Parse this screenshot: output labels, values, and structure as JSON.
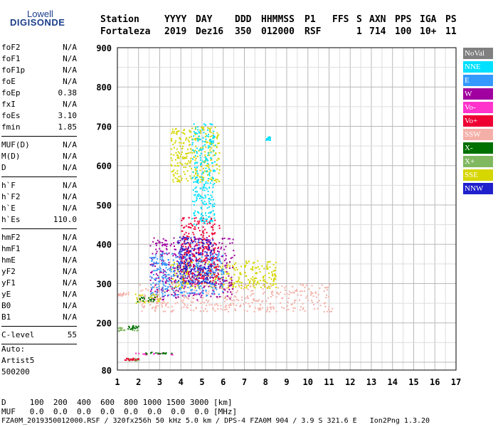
{
  "logo": {
    "line1": "Lowell",
    "line2": "DIGISONDE"
  },
  "header": {
    "labels": [
      "Station",
      "YYYY",
      "DAY",
      "DDD",
      "HHMMSS",
      "P1",
      "FFS",
      "S",
      "AXN",
      "PPS",
      "IGA",
      "PS"
    ],
    "values": [
      "Fortaleza",
      "2019",
      "Dez16",
      "350",
      "012000",
      "RSF",
      "",
      "1",
      "714",
      "100",
      "10+",
      "11"
    ]
  },
  "params": {
    "group1": [
      {
        "k": "foF2",
        "v": "N/A"
      },
      {
        "k": "foF1",
        "v": "N/A"
      },
      {
        "k": "foF1p",
        "v": "N/A"
      },
      {
        "k": "foE",
        "v": "N/A"
      },
      {
        "k": "foEp",
        "v": "0.38"
      },
      {
        "k": "fxI",
        "v": "N/A"
      },
      {
        "k": "foEs",
        "v": "3.10"
      },
      {
        "k": "fmin",
        "v": "1.85"
      }
    ],
    "group2": [
      {
        "k": "MUF(D)",
        "v": "N/A"
      },
      {
        "k": "M(D)",
        "v": "N/A"
      },
      {
        "k": "D",
        "v": "N/A"
      }
    ],
    "group3": [
      {
        "k": "h`F",
        "v": "N/A"
      },
      {
        "k": "h`F2",
        "v": "N/A"
      },
      {
        "k": "h`E",
        "v": "N/A"
      },
      {
        "k": "h`Es",
        "v": "110.0"
      }
    ],
    "group4": [
      {
        "k": "hmF2",
        "v": "N/A"
      },
      {
        "k": "hmF1",
        "v": "N/A"
      },
      {
        "k": "hmE",
        "v": "N/A"
      },
      {
        "k": "yF2",
        "v": "N/A"
      },
      {
        "k": "yF1",
        "v": "N/A"
      },
      {
        "k": "yE",
        "v": "N/A"
      },
      {
        "k": "B0",
        "v": "N/A"
      },
      {
        "k": "B1",
        "v": "N/A"
      }
    ],
    "clevel": {
      "k": "C-level",
      "v": "55"
    }
  },
  "auto": {
    "line1": "Auto:",
    "line2": "Artist5",
    "line3": "500200"
  },
  "legend": [
    {
      "label": "NoVal",
      "color": "#808080"
    },
    {
      "label": "NNE",
      "color": "#00e0ff"
    },
    {
      "label": "E",
      "color": "#3399ff"
    },
    {
      "label": "W",
      "color": "#a000a0"
    },
    {
      "label": "Vo-",
      "color": "#ff33cc"
    },
    {
      "label": "Vo+",
      "color": "#ee0033"
    },
    {
      "label": "SSW",
      "color": "#f4b0a8"
    },
    {
      "label": "X-",
      "color": "#007000"
    },
    {
      "label": "X+",
      "color": "#80b860"
    },
    {
      "label": "SSE",
      "color": "#d6d600"
    },
    {
      "label": "NNW",
      "color": "#2020cc"
    }
  ],
  "chart_data": {
    "type": "scatter",
    "xlim": [
      1,
      17
    ],
    "ylim": [
      80,
      900
    ],
    "x_ticks": [
      1,
      2,
      3,
      4,
      5,
      6,
      7,
      8,
      9,
      10,
      11,
      12,
      13,
      14,
      15,
      16,
      17
    ],
    "y_ticks": [
      80,
      200,
      300,
      400,
      500,
      600,
      700,
      800,
      900
    ],
    "grid": true,
    "legend_placement": "right",
    "series_regions": [
      {
        "name": "SSW",
        "x": [
          2.0,
          11.2
        ],
        "y": [
          230,
          300
        ]
      },
      {
        "name": "SSE",
        "x": [
          3.5,
          8.5
        ],
        "y": [
          290,
          360
        ]
      },
      {
        "name": "SSE",
        "x": [
          3.5,
          5.8
        ],
        "y": [
          560,
          700
        ]
      },
      {
        "name": "W",
        "x": [
          2.5,
          6.5
        ],
        "y": [
          260,
          420
        ]
      },
      {
        "name": "E",
        "x": [
          2.5,
          6.0
        ],
        "y": [
          270,
          380
        ]
      },
      {
        "name": "Vo+",
        "x": [
          4.0,
          5.8
        ],
        "y": [
          300,
          470
        ]
      },
      {
        "name": "NNE",
        "x": [
          4.5,
          5.6
        ],
        "y": [
          450,
          710
        ]
      },
      {
        "name": "NNW",
        "x": [
          3.8,
          5.5
        ],
        "y": [
          300,
          420
        ]
      },
      {
        "name": "X+",
        "x": [
          1.0,
          2.0
        ],
        "y": [
          180,
          190
        ]
      },
      {
        "name": "X-",
        "x": [
          1.4,
          2.0
        ],
        "y": [
          185,
          195
        ]
      },
      {
        "name": "SSW",
        "x": [
          1.0,
          1.5
        ],
        "y": [
          270,
          280
        ]
      },
      {
        "name": "Vo-",
        "x": [
          1.8,
          3.7
        ],
        "y": [
          120,
          125
        ]
      },
      {
        "name": "X-",
        "x": [
          2.2,
          3.7
        ],
        "y": [
          122,
          127
        ]
      },
      {
        "name": "X+",
        "x": [
          1.4,
          2.0
        ],
        "y": [
          105,
          111
        ]
      },
      {
        "name": "Vo+",
        "x": [
          1.3,
          2.0
        ],
        "y": [
          106,
          112
        ]
      },
      {
        "name": "SSE",
        "x": [
          1.8,
          3.0
        ],
        "y": [
          250,
          275
        ]
      },
      {
        "name": "X-",
        "x": [
          1.9,
          2.8
        ],
        "y": [
          255,
          268
        ]
      },
      {
        "name": "NNE",
        "x": [
          8.0,
          8.2
        ],
        "y": [
          665,
          675
        ]
      }
    ]
  },
  "bottom": {
    "row1": "D     100  200  400  600  800 1000 1500 3000 [km]",
    "row2": "MUF   0.0  0.0  0.0  0.0  0.0  0.0  0.0  0.0 [MHz]",
    "row3": "FZA0M_2019350012000.RSF / 320fx256h 50 kHz 5.0 km / DPS-4 FZA0M 904 / 3.9 S 321.6 E   Ion2Png 1.3.20"
  }
}
